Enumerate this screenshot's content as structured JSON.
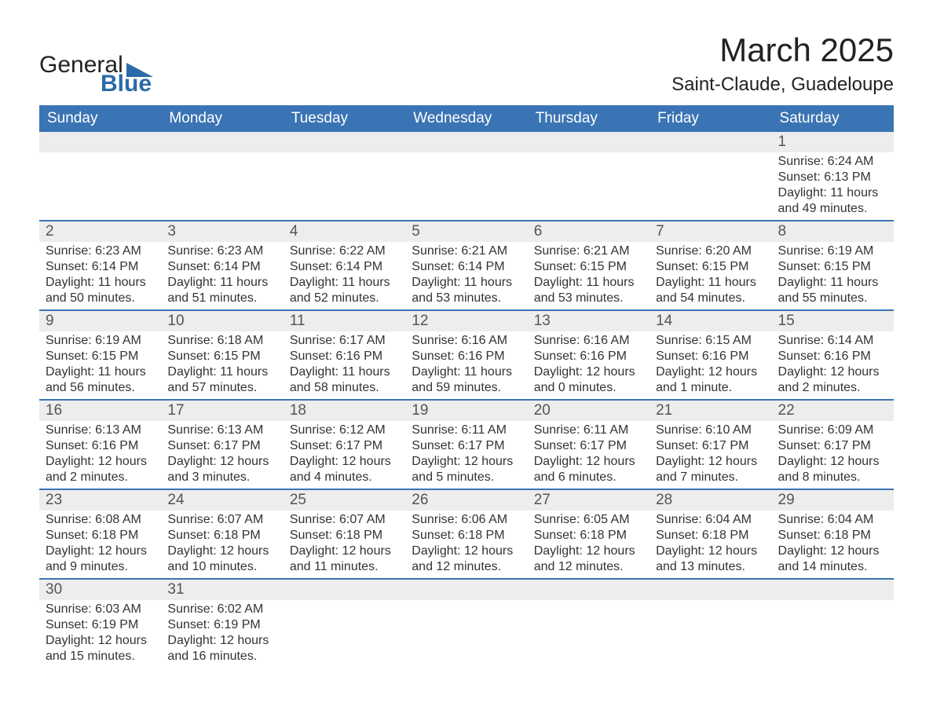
{
  "logo": {
    "text1": "General",
    "text2": "Blue",
    "shape_color": "#2b6aa8"
  },
  "title": "March 2025",
  "location": "Saint-Claude, Guadeloupe",
  "colors": {
    "header_blue": "#3b74b4",
    "row_stripe": "#ededed",
    "row_border": "#3b74b4"
  },
  "dayNames": [
    "Sunday",
    "Monday",
    "Tuesday",
    "Wednesday",
    "Thursday",
    "Friday",
    "Saturday"
  ],
  "weeks": [
    [
      null,
      null,
      null,
      null,
      null,
      null,
      {
        "n": "1",
        "sunrise": "Sunrise: 6:24 AM",
        "sunset": "Sunset: 6:13 PM",
        "dl1": "Daylight: 11 hours",
        "dl2": "and 49 minutes."
      }
    ],
    [
      {
        "n": "2",
        "sunrise": "Sunrise: 6:23 AM",
        "sunset": "Sunset: 6:14 PM",
        "dl1": "Daylight: 11 hours",
        "dl2": "and 50 minutes."
      },
      {
        "n": "3",
        "sunrise": "Sunrise: 6:23 AM",
        "sunset": "Sunset: 6:14 PM",
        "dl1": "Daylight: 11 hours",
        "dl2": "and 51 minutes."
      },
      {
        "n": "4",
        "sunrise": "Sunrise: 6:22 AM",
        "sunset": "Sunset: 6:14 PM",
        "dl1": "Daylight: 11 hours",
        "dl2": "and 52 minutes."
      },
      {
        "n": "5",
        "sunrise": "Sunrise: 6:21 AM",
        "sunset": "Sunset: 6:14 PM",
        "dl1": "Daylight: 11 hours",
        "dl2": "and 53 minutes."
      },
      {
        "n": "6",
        "sunrise": "Sunrise: 6:21 AM",
        "sunset": "Sunset: 6:15 PM",
        "dl1": "Daylight: 11 hours",
        "dl2": "and 53 minutes."
      },
      {
        "n": "7",
        "sunrise": "Sunrise: 6:20 AM",
        "sunset": "Sunset: 6:15 PM",
        "dl1": "Daylight: 11 hours",
        "dl2": "and 54 minutes."
      },
      {
        "n": "8",
        "sunrise": "Sunrise: 6:19 AM",
        "sunset": "Sunset: 6:15 PM",
        "dl1": "Daylight: 11 hours",
        "dl2": "and 55 minutes."
      }
    ],
    [
      {
        "n": "9",
        "sunrise": "Sunrise: 6:19 AM",
        "sunset": "Sunset: 6:15 PM",
        "dl1": "Daylight: 11 hours",
        "dl2": "and 56 minutes."
      },
      {
        "n": "10",
        "sunrise": "Sunrise: 6:18 AM",
        "sunset": "Sunset: 6:15 PM",
        "dl1": "Daylight: 11 hours",
        "dl2": "and 57 minutes."
      },
      {
        "n": "11",
        "sunrise": "Sunrise: 6:17 AM",
        "sunset": "Sunset: 6:16 PM",
        "dl1": "Daylight: 11 hours",
        "dl2": "and 58 minutes."
      },
      {
        "n": "12",
        "sunrise": "Sunrise: 6:16 AM",
        "sunset": "Sunset: 6:16 PM",
        "dl1": "Daylight: 11 hours",
        "dl2": "and 59 minutes."
      },
      {
        "n": "13",
        "sunrise": "Sunrise: 6:16 AM",
        "sunset": "Sunset: 6:16 PM",
        "dl1": "Daylight: 12 hours",
        "dl2": "and 0 minutes."
      },
      {
        "n": "14",
        "sunrise": "Sunrise: 6:15 AM",
        "sunset": "Sunset: 6:16 PM",
        "dl1": "Daylight: 12 hours",
        "dl2": "and 1 minute."
      },
      {
        "n": "15",
        "sunrise": "Sunrise: 6:14 AM",
        "sunset": "Sunset: 6:16 PM",
        "dl1": "Daylight: 12 hours",
        "dl2": "and 2 minutes."
      }
    ],
    [
      {
        "n": "16",
        "sunrise": "Sunrise: 6:13 AM",
        "sunset": "Sunset: 6:16 PM",
        "dl1": "Daylight: 12 hours",
        "dl2": "and 2 minutes."
      },
      {
        "n": "17",
        "sunrise": "Sunrise: 6:13 AM",
        "sunset": "Sunset: 6:17 PM",
        "dl1": "Daylight: 12 hours",
        "dl2": "and 3 minutes."
      },
      {
        "n": "18",
        "sunrise": "Sunrise: 6:12 AM",
        "sunset": "Sunset: 6:17 PM",
        "dl1": "Daylight: 12 hours",
        "dl2": "and 4 minutes."
      },
      {
        "n": "19",
        "sunrise": "Sunrise: 6:11 AM",
        "sunset": "Sunset: 6:17 PM",
        "dl1": "Daylight: 12 hours",
        "dl2": "and 5 minutes."
      },
      {
        "n": "20",
        "sunrise": "Sunrise: 6:11 AM",
        "sunset": "Sunset: 6:17 PM",
        "dl1": "Daylight: 12 hours",
        "dl2": "and 6 minutes."
      },
      {
        "n": "21",
        "sunrise": "Sunrise: 6:10 AM",
        "sunset": "Sunset: 6:17 PM",
        "dl1": "Daylight: 12 hours",
        "dl2": "and 7 minutes."
      },
      {
        "n": "22",
        "sunrise": "Sunrise: 6:09 AM",
        "sunset": "Sunset: 6:17 PM",
        "dl1": "Daylight: 12 hours",
        "dl2": "and 8 minutes."
      }
    ],
    [
      {
        "n": "23",
        "sunrise": "Sunrise: 6:08 AM",
        "sunset": "Sunset: 6:18 PM",
        "dl1": "Daylight: 12 hours",
        "dl2": "and 9 minutes."
      },
      {
        "n": "24",
        "sunrise": "Sunrise: 6:07 AM",
        "sunset": "Sunset: 6:18 PM",
        "dl1": "Daylight: 12 hours",
        "dl2": "and 10 minutes."
      },
      {
        "n": "25",
        "sunrise": "Sunrise: 6:07 AM",
        "sunset": "Sunset: 6:18 PM",
        "dl1": "Daylight: 12 hours",
        "dl2": "and 11 minutes."
      },
      {
        "n": "26",
        "sunrise": "Sunrise: 6:06 AM",
        "sunset": "Sunset: 6:18 PM",
        "dl1": "Daylight: 12 hours",
        "dl2": "and 12 minutes."
      },
      {
        "n": "27",
        "sunrise": "Sunrise: 6:05 AM",
        "sunset": "Sunset: 6:18 PM",
        "dl1": "Daylight: 12 hours",
        "dl2": "and 12 minutes."
      },
      {
        "n": "28",
        "sunrise": "Sunrise: 6:04 AM",
        "sunset": "Sunset: 6:18 PM",
        "dl1": "Daylight: 12 hours",
        "dl2": "and 13 minutes."
      },
      {
        "n": "29",
        "sunrise": "Sunrise: 6:04 AM",
        "sunset": "Sunset: 6:18 PM",
        "dl1": "Daylight: 12 hours",
        "dl2": "and 14 minutes."
      }
    ],
    [
      {
        "n": "30",
        "sunrise": "Sunrise: 6:03 AM",
        "sunset": "Sunset: 6:19 PM",
        "dl1": "Daylight: 12 hours",
        "dl2": "and 15 minutes."
      },
      {
        "n": "31",
        "sunrise": "Sunrise: 6:02 AM",
        "sunset": "Sunset: 6:19 PM",
        "dl1": "Daylight: 12 hours",
        "dl2": "and 16 minutes."
      },
      null,
      null,
      null,
      null,
      null
    ]
  ]
}
